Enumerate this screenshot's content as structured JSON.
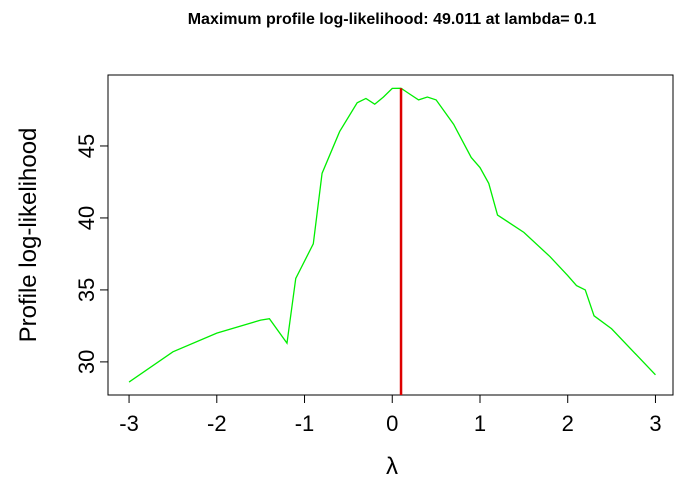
{
  "chart_data": {
    "type": "line",
    "title": "Maximum profile log-likelihood: 49.011 at lambda= 0.1",
    "xlabel": "λ",
    "ylabel": "Profile log-likelihood",
    "x": [
      -3,
      -2.5,
      -2,
      -1.5,
      -1.4,
      -1.2,
      -1.1,
      -0.9,
      -0.8,
      -0.6,
      -0.4,
      -0.3,
      -0.2,
      -0.1,
      0,
      0.1,
      0.2,
      0.3,
      0.4,
      0.5,
      0.7,
      0.9,
      1.0,
      1.1,
      1.2,
      1.5,
      1.8,
      2.0,
      2.1,
      2.2,
      2.3,
      2.5,
      3.0
    ],
    "series": [
      {
        "color": "#00ee00",
        "values": [
          28.6,
          30.7,
          32.0,
          32.9,
          33.0,
          31.3,
          35.8,
          38.2,
          43.1,
          46.0,
          48.0,
          48.3,
          47.9,
          48.4,
          49.0,
          49.011,
          48.6,
          48.2,
          48.4,
          48.2,
          46.5,
          44.2,
          43.5,
          42.4,
          40.2,
          39.0,
          37.3,
          36.0,
          35.3,
          35.0,
          33.2,
          32.3,
          29.1
        ]
      }
    ],
    "vline": 0.1,
    "vline_color": "#dd0000",
    "xlim": [
      -3.24,
      3.2
    ],
    "ylim": [
      27.7,
      49.93
    ],
    "xticks": [
      -3,
      -2,
      -1,
      0,
      1,
      2,
      3
    ],
    "yticks": [
      30,
      35,
      40,
      45
    ]
  }
}
